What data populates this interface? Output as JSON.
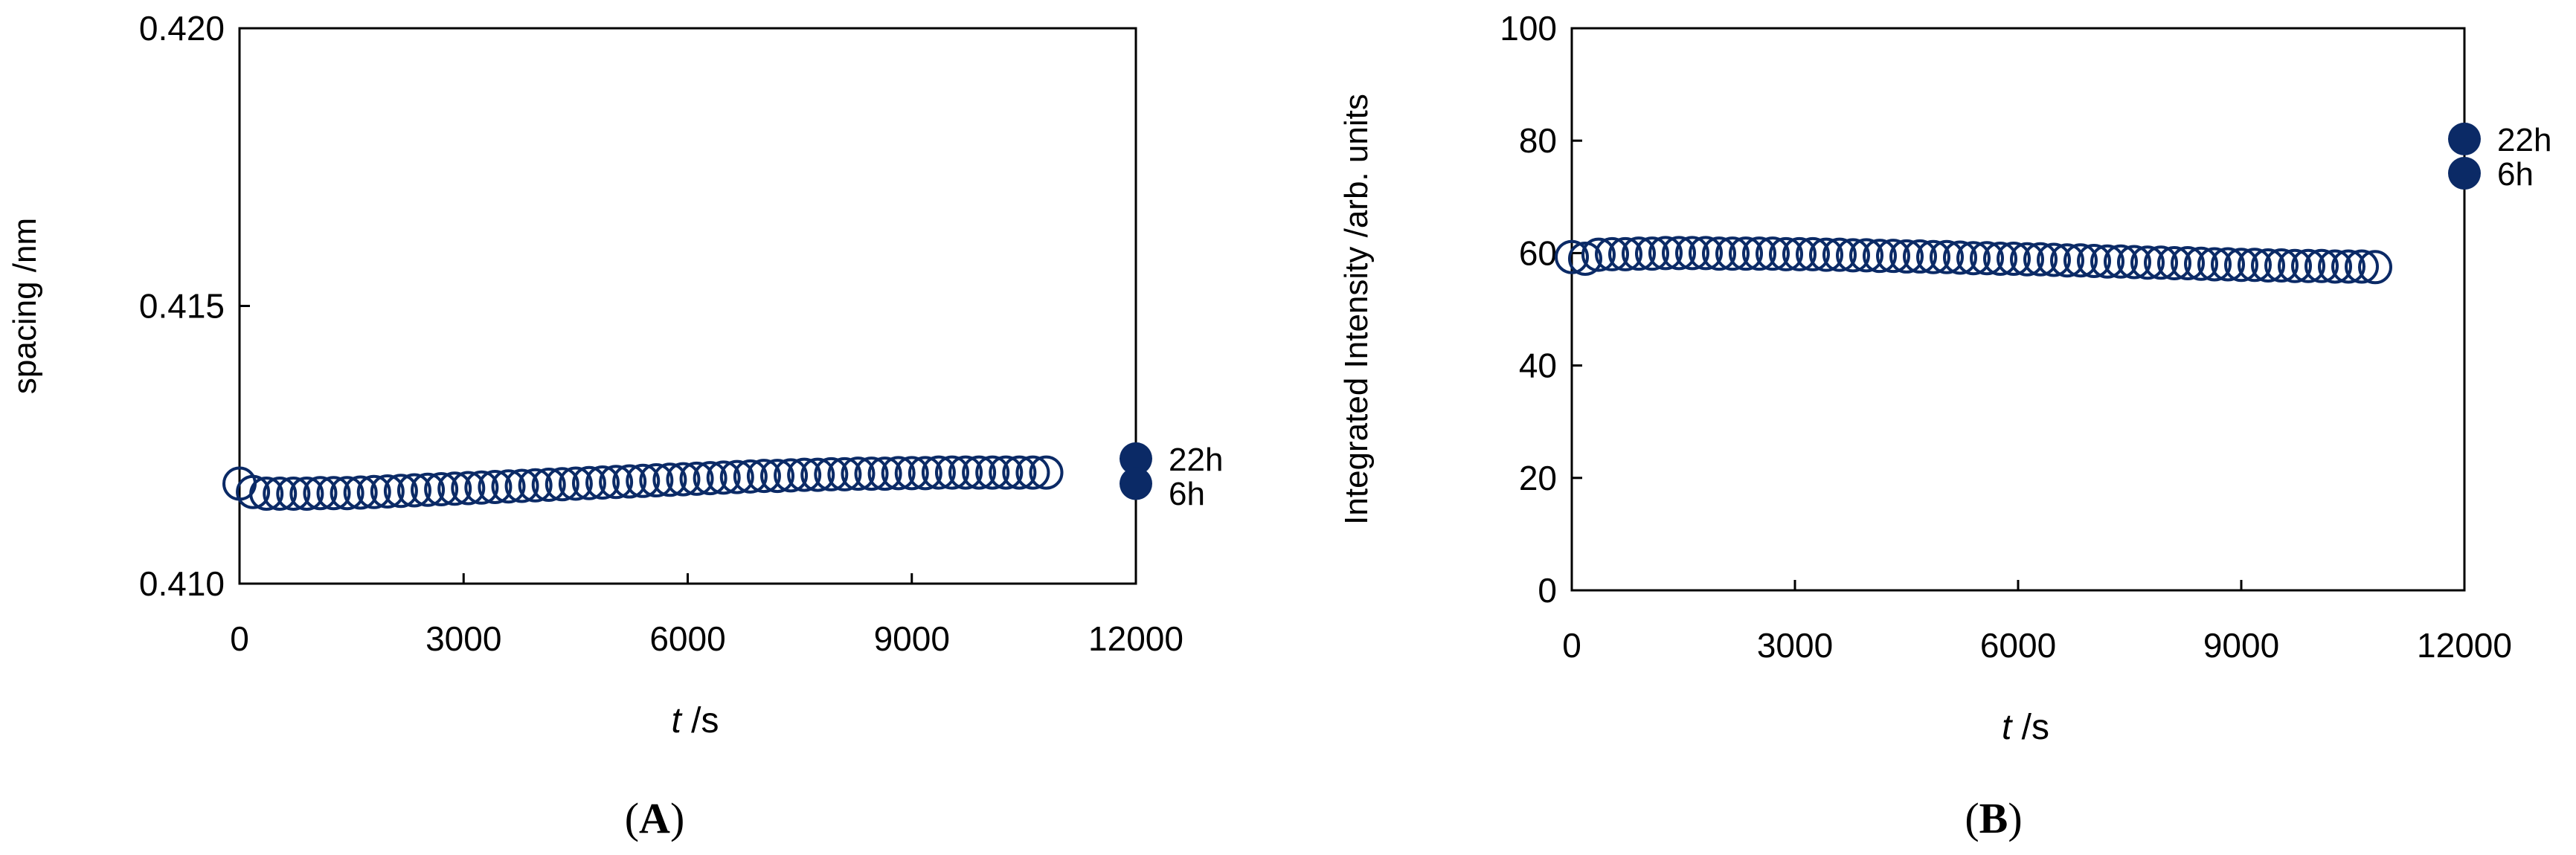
{
  "colors": {
    "marker": "#0b2a66",
    "axis": "#000000",
    "background": "#ffffff"
  },
  "chart_data": [
    {
      "type": "scatter",
      "panel_label": [
        "(",
        "A",
        ")"
      ],
      "xlabel": {
        "italic": "t",
        "rest": " /s"
      },
      "ylabel": "spacing /nm",
      "xlim": [
        0,
        12000
      ],
      "ylim": [
        0.41,
        0.42
      ],
      "xticks": [
        0,
        3000,
        6000,
        9000,
        12000
      ],
      "xtick_labels": [
        "0",
        "3000",
        "6000",
        "9000",
        "12000"
      ],
      "yticks": [
        0.41,
        0.415,
        0.42
      ],
      "ytick_labels": [
        "0.410",
        "0.415",
        "0.420"
      ],
      "grid": false,
      "series": [
        {
          "marker": "open-circle",
          "x": [
            0,
            180,
            360,
            540,
            720,
            900,
            1080,
            1260,
            1440,
            1620,
            1800,
            1980,
            2160,
            2340,
            2520,
            2700,
            2880,
            3060,
            3240,
            3420,
            3600,
            3780,
            3960,
            4140,
            4320,
            4500,
            4680,
            4860,
            5040,
            5220,
            5400,
            5580,
            5760,
            5940,
            6120,
            6300,
            6480,
            6660,
            6840,
            7020,
            7200,
            7380,
            7560,
            7740,
            7920,
            8100,
            8280,
            8460,
            8640,
            8820,
            9000,
            9180,
            9360,
            9540,
            9720,
            9900,
            10080,
            10260,
            10440,
            10620,
            10800
          ],
          "y": [
            0.4118,
            0.41165,
            0.41162,
            0.41162,
            0.41162,
            0.41162,
            0.41163,
            0.41163,
            0.41163,
            0.41164,
            0.41165,
            0.41166,
            0.41167,
            0.41168,
            0.41169,
            0.4117,
            0.41171,
            0.41172,
            0.41173,
            0.41174,
            0.41175,
            0.41176,
            0.41177,
            0.41178,
            0.41179,
            0.4118,
            0.41181,
            0.41182,
            0.41183,
            0.41184,
            0.41185,
            0.41186,
            0.41187,
            0.41188,
            0.41189,
            0.4119,
            0.41191,
            0.41192,
            0.41193,
            0.41194,
            0.41194,
            0.41195,
            0.41196,
            0.41196,
            0.41197,
            0.41197,
            0.41198,
            0.41198,
            0.41198,
            0.41199,
            0.41199,
            0.41199,
            0.412,
            0.412,
            0.412,
            0.412,
            0.412,
            0.412,
            0.412,
            0.412,
            0.412
          ]
        },
        {
          "marker": "filled-circle",
          "x": [
            12000,
            12000
          ],
          "y": [
            0.41225,
            0.4118
          ],
          "point_labels": [
            "22h",
            "6h"
          ]
        }
      ]
    },
    {
      "type": "scatter",
      "panel_label": [
        "(",
        "B",
        ")"
      ],
      "xlabel": {
        "italic": "t",
        "rest": " /s"
      },
      "ylabel": "Integrated Intensity /arb. units",
      "xlim": [
        0,
        12000
      ],
      "ylim": [
        0,
        100
      ],
      "xticks": [
        0,
        3000,
        6000,
        9000,
        12000
      ],
      "xtick_labels": [
        "0",
        "3000",
        "6000",
        "9000",
        "12000"
      ],
      "yticks": [
        0,
        20,
        40,
        60,
        80,
        100
      ],
      "ytick_labels": [
        "0",
        "20",
        "40",
        "60",
        "80",
        "100"
      ],
      "grid": false,
      "series": [
        {
          "marker": "open-circle",
          "x": [
            0,
            180,
            360,
            540,
            720,
            900,
            1080,
            1260,
            1440,
            1620,
            1800,
            1980,
            2160,
            2340,
            2520,
            2700,
            2880,
            3060,
            3240,
            3420,
            3600,
            3780,
            3960,
            4140,
            4320,
            4500,
            4680,
            4860,
            5040,
            5220,
            5400,
            5580,
            5760,
            5940,
            6120,
            6300,
            6480,
            6660,
            6840,
            7020,
            7200,
            7380,
            7560,
            7740,
            7920,
            8100,
            8280,
            8460,
            8640,
            8820,
            9000,
            9180,
            9360,
            9540,
            9720,
            9900,
            10080,
            10260,
            10440,
            10620,
            10800
          ],
          "y": [
            59.3,
            59.0,
            59.7,
            59.8,
            59.8,
            59.9,
            59.9,
            60.0,
            60.0,
            60.0,
            60.0,
            59.9,
            59.9,
            59.9,
            59.9,
            59.9,
            59.8,
            59.8,
            59.8,
            59.7,
            59.7,
            59.6,
            59.6,
            59.5,
            59.5,
            59.4,
            59.4,
            59.3,
            59.3,
            59.2,
            59.1,
            59.1,
            59.0,
            59.0,
            58.9,
            58.9,
            58.8,
            58.7,
            58.7,
            58.6,
            58.5,
            58.5,
            58.4,
            58.3,
            58.3,
            58.2,
            58.2,
            58.1,
            58.0,
            58.0,
            57.9,
            57.9,
            57.8,
            57.8,
            57.7,
            57.7,
            57.7,
            57.6,
            57.6,
            57.6,
            57.5
          ]
        },
        {
          "marker": "filled-circle",
          "x": [
            12000,
            12000
          ],
          "y": [
            80.3,
            74.2
          ],
          "point_labels": [
            "22h",
            "6h"
          ]
        }
      ]
    }
  ]
}
